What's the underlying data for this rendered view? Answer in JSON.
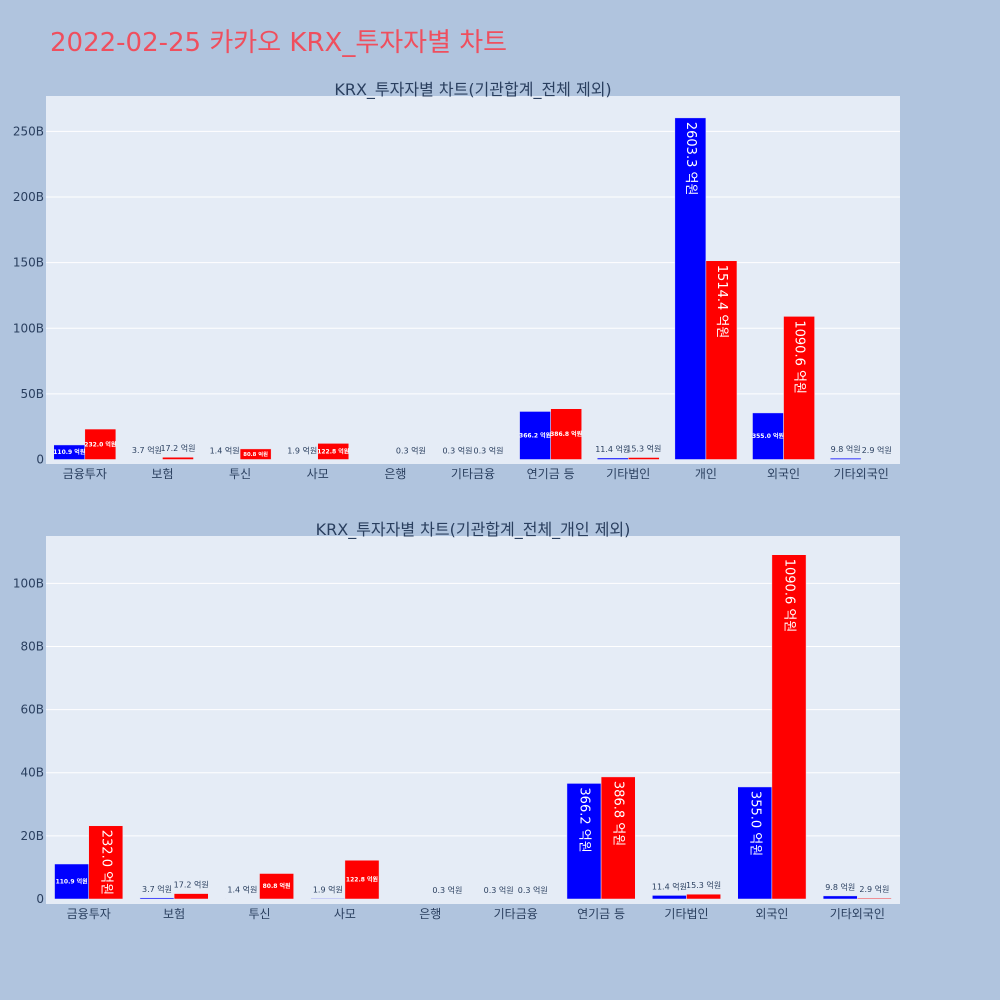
{
  "title": "2022-02-25 카카오 KRX_투자자별 차트",
  "colors": {
    "buy": "#0000ff",
    "sell": "#ff0000",
    "plot_bg": "#e5ecf6",
    "page_bg": "#b0c4de",
    "title": "#ef4f5e"
  },
  "chart_data": [
    {
      "type": "bar",
      "title": "KRX_투자자별 차트(기관합계_전체 제외)",
      "categories": [
        "금융투자",
        "보험",
        "투신",
        "사모",
        "은행",
        "기타금융",
        "연기금 등",
        "기타법인",
        "개인",
        "외국인",
        "기타외국인"
      ],
      "ylim": [
        0,
        277
      ],
      "yticks": [
        0,
        50,
        100,
        150,
        200,
        250
      ],
      "ytick_labels": [
        "0",
        "50B",
        "100B",
        "150B",
        "200B",
        "250B"
      ],
      "series": [
        {
          "name": "buy",
          "values": [
            11.09,
            0.37,
            0.14,
            0.19,
            0,
            0.03,
            36.62,
            1.14,
            260.33,
            35.5,
            0.98
          ],
          "labels": [
            "110.9 억원",
            "3.7 억원",
            "1.4 억원",
            "1.9 억원",
            "",
            "0.3 억원",
            "366.2 억원",
            "11.4 억원",
            "2603.3 억원",
            "355.0 억원",
            "9.8 억원"
          ]
        },
        {
          "name": "sell",
          "values": [
            23.2,
            1.72,
            8.08,
            12.28,
            0.03,
            0.03,
            38.68,
            1.53,
            151.44,
            109.06,
            0.29
          ],
          "labels": [
            "232.0 억원",
            "17.2 억원",
            "80.8 억원",
            "122.8 억원",
            "0.3 억원",
            "0.3 억원",
            "386.8 억원",
            "15.3 억원",
            "1514.4 억원",
            "1090.6 억원",
            "2.9 억원"
          ]
        }
      ]
    },
    {
      "type": "bar",
      "title": "KRX_투자자별 차트(기관합계_전체_개인 제외)",
      "categories": [
        "금융투자",
        "보험",
        "투신",
        "사모",
        "은행",
        "기타금융",
        "연기금 등",
        "기타법인",
        "외국인",
        "기타외국인"
      ],
      "ylim": [
        0,
        115
      ],
      "yticks": [
        0,
        20,
        40,
        60,
        80,
        100
      ],
      "ytick_labels": [
        "0",
        "20B",
        "40B",
        "60B",
        "80B",
        "100B"
      ],
      "series": [
        {
          "name": "buy",
          "values": [
            11.09,
            0.37,
            0.14,
            0.19,
            0,
            0.03,
            36.62,
            1.14,
            35.5,
            0.98
          ],
          "labels": [
            "110.9 억원",
            "3.7 억원",
            "1.4 억원",
            "1.9 억원",
            "",
            "0.3 억원",
            "366.2 억원",
            "11.4 억원",
            "355.0 억원",
            "9.8 억원"
          ]
        },
        {
          "name": "sell",
          "values": [
            23.2,
            1.72,
            8.08,
            12.28,
            0.03,
            0.03,
            38.68,
            1.53,
            109.06,
            0.29
          ],
          "labels": [
            "232.0 억원",
            "17.2 억원",
            "80.8 억원",
            "122.8 억원",
            "0.3 억원",
            "0.3 억원",
            "386.8 억원",
            "15.3 억원",
            "1090.6 억원",
            "2.9 억원"
          ]
        }
      ]
    }
  ]
}
